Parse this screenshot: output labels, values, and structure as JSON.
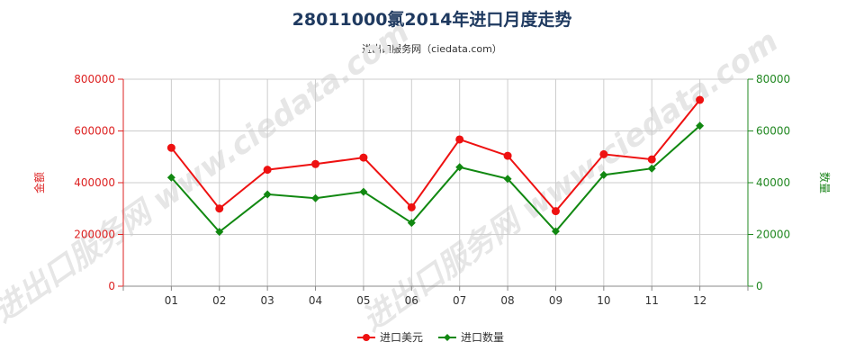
{
  "chart_data": {
    "type": "line",
    "title": "28011000氯2014年进口月度走势",
    "subtitle": "进出口服务网（ciedata.com）",
    "watermark": "进出口服务网 www.ciedata.com",
    "categories": [
      "01",
      "02",
      "03",
      "04",
      "05",
      "06",
      "07",
      "08",
      "09",
      "10",
      "11",
      "12"
    ],
    "y_left": {
      "label": "金额",
      "ticks": [
        "0",
        "200000",
        "400000",
        "600000",
        "800000"
      ],
      "ylim": [
        0,
        800000
      ],
      "color": "#dd2222"
    },
    "y_right": {
      "label": "数量",
      "ticks": [
        "0",
        "20000",
        "40000",
        "60000",
        "80000"
      ],
      "ylim": [
        0,
        80000
      ],
      "color": "#228822"
    },
    "series": [
      {
        "name": "进口美元",
        "axis": "left",
        "color": "#ee1111",
        "marker": "circle",
        "values": [
          535000,
          300000,
          450000,
          472000,
          497000,
          305000,
          567000,
          504000,
          290000,
          510000,
          490000,
          720000
        ]
      },
      {
        "name": "进口数量",
        "axis": "right",
        "color": "#118811",
        "marker": "diamond",
        "values": [
          42000,
          21000,
          35500,
          34000,
          36500,
          24500,
          46000,
          41500,
          21200,
          43000,
          45500,
          62000
        ]
      }
    ],
    "grid": true,
    "legend_position": "bottom-center"
  }
}
